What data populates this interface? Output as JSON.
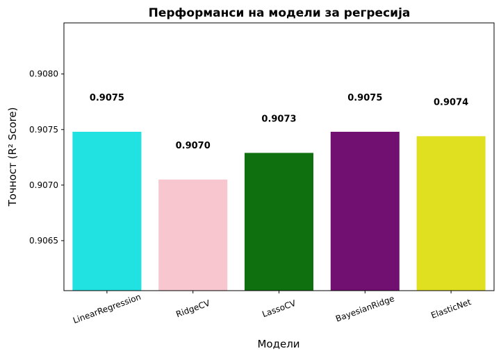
{
  "chart_data": {
    "type": "bar",
    "title": "Перформанси на модели за регресија",
    "xlabel": "Модели",
    "ylabel": "Точност (R² Score)",
    "categories": [
      "LinearRegression",
      "RidgeCV",
      "LassoCV",
      "BayesianRidge",
      "ElasticNet"
    ],
    "values": [
      0.90748,
      0.90705,
      0.90729,
      0.90748,
      0.90744
    ],
    "data_labels": [
      "0.9075",
      "0.9070",
      "0.9073",
      "0.9075",
      "0.9074"
    ],
    "colors": [
      "#22e1e1",
      "#f7c6cf",
      "#0f7010",
      "#721071",
      "#e0e020"
    ],
    "ylim": [
      0.90605,
      0.90846
    ],
    "yticks": [
      0.9065,
      0.907,
      0.9075,
      0.908
    ],
    "ytick_labels": [
      "0.9065",
      "0.9070",
      "0.9075",
      "0.9080"
    ],
    "grid": false
  }
}
